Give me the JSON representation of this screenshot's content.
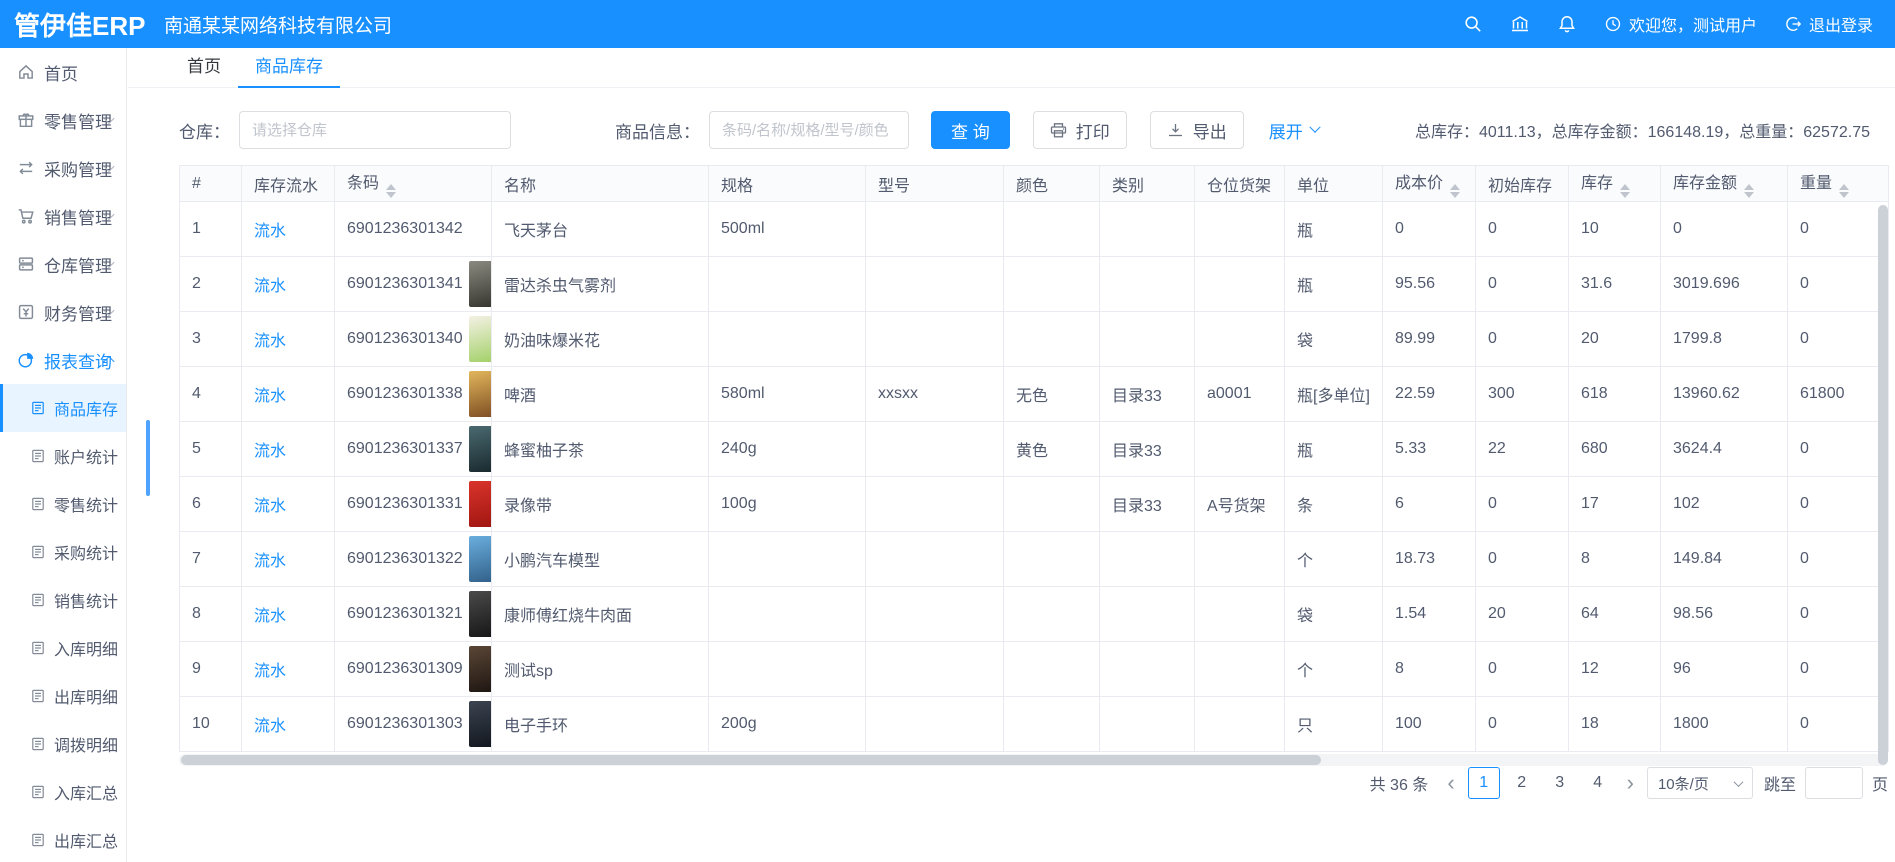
{
  "topbar": {
    "logo": "管伊佳ERP",
    "company": "南通某某网络科技有限公司",
    "welcome": "欢迎您，测试用户",
    "logout": "退出登录"
  },
  "sidebar": {
    "items": [
      {
        "id": "home",
        "label": "首页",
        "icon": "home-icon",
        "type": "parent",
        "chevron": null,
        "active": false
      },
      {
        "id": "retail",
        "label": "零售管理",
        "icon": "retail-icon",
        "type": "parent",
        "chevron": "down",
        "active": false
      },
      {
        "id": "purchase",
        "label": "采购管理",
        "icon": "purchase-icon",
        "type": "parent",
        "chevron": "down",
        "active": false
      },
      {
        "id": "sales",
        "label": "销售管理",
        "icon": "sales-icon",
        "type": "parent",
        "chevron": "down",
        "active": false
      },
      {
        "id": "warehouse",
        "label": "仓库管理",
        "icon": "warehouse-icon",
        "type": "parent",
        "chevron": "down",
        "active": false
      },
      {
        "id": "finance",
        "label": "财务管理",
        "icon": "finance-icon",
        "type": "parent",
        "chevron": "down",
        "active": false
      },
      {
        "id": "reports",
        "label": "报表查询",
        "icon": "report-icon",
        "type": "parent",
        "chevron": "up",
        "active": true
      },
      {
        "id": "goods-stock",
        "label": "商品库存",
        "icon": "doc-icon",
        "type": "child",
        "active": true
      },
      {
        "id": "account-stats",
        "label": "账户统计",
        "icon": "doc-icon",
        "type": "child",
        "active": false
      },
      {
        "id": "retail-stats",
        "label": "零售统计",
        "icon": "doc-icon",
        "type": "child",
        "active": false
      },
      {
        "id": "purchase-stats",
        "label": "采购统计",
        "icon": "doc-icon",
        "type": "child",
        "active": false
      },
      {
        "id": "sales-stats",
        "label": "销售统计",
        "icon": "doc-icon",
        "type": "child",
        "active": false
      },
      {
        "id": "inbound-detail",
        "label": "入库明细",
        "icon": "doc-icon",
        "type": "child",
        "active": false
      },
      {
        "id": "outbound-detail",
        "label": "出库明细",
        "icon": "doc-icon",
        "type": "child",
        "active": false
      },
      {
        "id": "transfer-detail",
        "label": "调拨明细",
        "icon": "doc-icon",
        "type": "child",
        "active": false
      },
      {
        "id": "inbound-summary",
        "label": "入库汇总",
        "icon": "doc-icon",
        "type": "child",
        "active": false
      },
      {
        "id": "outbound-summary",
        "label": "出库汇总",
        "icon": "doc-icon",
        "type": "child",
        "active": false
      }
    ]
  },
  "tabs": [
    {
      "id": "home",
      "label": "首页",
      "active": false
    },
    {
      "id": "goods-stock",
      "label": "商品库存",
      "active": true
    }
  ],
  "filters": {
    "warehouse_label": "仓库：",
    "warehouse_placeholder": "请选择仓库",
    "product_label": "商品信息：",
    "product_placeholder": "条码/名称/规格/型号/颜色",
    "search_button": "查 询",
    "print_button": "打印",
    "export_button": "导出",
    "expand_link": "展开",
    "summary": "总库存：4011.13，总库存金额：166148.19，总重量：62572.75"
  },
  "accent_color": "#1890ff",
  "table": {
    "columns": [
      {
        "key": "idx",
        "label": "#",
        "sortable": false
      },
      {
        "key": "flow",
        "label": "库存流水",
        "sortable": false
      },
      {
        "key": "barcode",
        "label": "条码",
        "sortable": true
      },
      {
        "key": "name",
        "label": "名称",
        "sortable": false
      },
      {
        "key": "spec",
        "label": "规格",
        "sortable": false
      },
      {
        "key": "model",
        "label": "型号",
        "sortable": false
      },
      {
        "key": "color",
        "label": "颜色",
        "sortable": false
      },
      {
        "key": "category",
        "label": "类别",
        "sortable": false
      },
      {
        "key": "shelf",
        "label": "仓位货架",
        "sortable": false
      },
      {
        "key": "unit",
        "label": "单位",
        "sortable": false
      },
      {
        "key": "cost",
        "label": "成本价",
        "sortable": true
      },
      {
        "key": "init_stock",
        "label": "初始库存",
        "sortable": false
      },
      {
        "key": "stock",
        "label": "库存",
        "sortable": true
      },
      {
        "key": "amount",
        "label": "库存金额",
        "sortable": true
      },
      {
        "key": "weight",
        "label": "重量",
        "sortable": true
      }
    ],
    "flow_link_label": "流水",
    "rows": [
      {
        "idx": "1",
        "barcode": "6901236301342",
        "thumb": null,
        "name": "飞天茅台",
        "spec": "500ml",
        "model": "",
        "color": "",
        "category": "",
        "shelf": "",
        "unit": "瓶",
        "cost": "0",
        "init_stock": "0",
        "stock": "10",
        "amount": "0",
        "weight": "0"
      },
      {
        "idx": "2",
        "barcode": "6901236301341",
        "thumb": [
          "#8a8a80",
          "#32322c"
        ],
        "name": "雷达杀虫气雾剂",
        "spec": "",
        "model": "",
        "color": "",
        "category": "",
        "shelf": "",
        "unit": "瓶",
        "cost": "95.56",
        "init_stock": "0",
        "stock": "31.6",
        "amount": "3019.696",
        "weight": "0"
      },
      {
        "idx": "3",
        "barcode": "6901236301340",
        "thumb": [
          "#f4f1e4",
          "#9fcf63"
        ],
        "name": "奶油味爆米花",
        "spec": "",
        "model": "",
        "color": "",
        "category": "",
        "shelf": "",
        "unit": "袋",
        "cost": "89.99",
        "init_stock": "0",
        "stock": "20",
        "amount": "1799.8",
        "weight": "0"
      },
      {
        "idx": "4",
        "barcode": "6901236301338",
        "thumb": [
          "#e2b65c",
          "#7a4a20"
        ],
        "name": "啤酒",
        "spec": "580ml",
        "model": "xxsxx",
        "color": "无色",
        "category": "目录33",
        "shelf": "a0001",
        "unit": "瓶[多单位]",
        "cost": "22.59",
        "init_stock": "300",
        "stock": "618",
        "amount": "13960.62",
        "weight": "61800"
      },
      {
        "idx": "5",
        "barcode": "6901236301337",
        "thumb": [
          "#4a6a70",
          "#17262b"
        ],
        "name": "蜂蜜柚子茶",
        "spec": "240g",
        "model": "",
        "color": "黄色",
        "category": "目录33",
        "shelf": "",
        "unit": "瓶",
        "cost": "5.33",
        "init_stock": "22",
        "stock": "680",
        "amount": "3624.4",
        "weight": "0"
      },
      {
        "idx": "6",
        "barcode": "6901236301331",
        "thumb": [
          "#d9342b",
          "#9e1410"
        ],
        "name": "录像带",
        "spec": "100g",
        "model": "",
        "color": "",
        "category": "目录33",
        "shelf": "A号货架",
        "unit": "条",
        "cost": "6",
        "init_stock": "0",
        "stock": "17",
        "amount": "102",
        "weight": "0"
      },
      {
        "idx": "7",
        "barcode": "6901236301322",
        "thumb": [
          "#6aaede",
          "#2f5d86"
        ],
        "name": "小鹏汽车模型",
        "spec": "",
        "model": "",
        "color": "",
        "category": "",
        "shelf": "",
        "unit": "个",
        "cost": "18.73",
        "init_stock": "0",
        "stock": "8",
        "amount": "149.84",
        "weight": "0"
      },
      {
        "idx": "8",
        "barcode": "6901236301321",
        "thumb": [
          "#4a4a4a",
          "#141414"
        ],
        "name": "康师傅红烧牛肉面",
        "spec": "",
        "model": "",
        "color": "",
        "category": "",
        "shelf": "",
        "unit": "袋",
        "cost": "1.54",
        "init_stock": "20",
        "stock": "64",
        "amount": "98.56",
        "weight": "0"
      },
      {
        "idx": "9",
        "barcode": "6901236301309",
        "thumb": [
          "#5a4636",
          "#1c1410"
        ],
        "name": "测试sp",
        "spec": "",
        "model": "",
        "color": "",
        "category": "",
        "shelf": "",
        "unit": "个",
        "cost": "8",
        "init_stock": "0",
        "stock": "12",
        "amount": "96",
        "weight": "0"
      },
      {
        "idx": "10",
        "barcode": "6901236301303",
        "thumb": [
          "#3c4450",
          "#10141c"
        ],
        "name": "电子手环",
        "spec": "200g",
        "model": "",
        "color": "",
        "category": "",
        "shelf": "",
        "unit": "只",
        "cost": "100",
        "init_stock": "0",
        "stock": "18",
        "amount": "1800",
        "weight": "0"
      }
    ]
  },
  "pagination": {
    "total_text": "共 36 条",
    "pages": [
      "1",
      "2",
      "3",
      "4"
    ],
    "active_page": "1",
    "page_size": "10条/页",
    "jump_prefix": "跳至",
    "jump_value": "",
    "jump_suffix": "页"
  }
}
